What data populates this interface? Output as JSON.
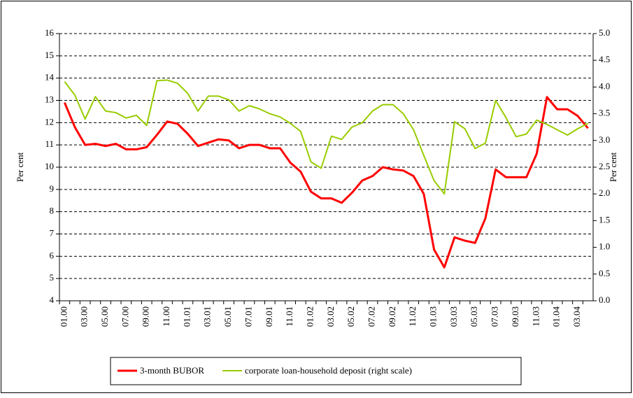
{
  "chart_data": {
    "type": "line",
    "categories": [
      "01.00",
      null,
      "03.00",
      null,
      "05.00",
      null,
      "07.00",
      null,
      "09.00",
      null,
      "11.00",
      null,
      "01.01",
      null,
      "03.01",
      null,
      "05.01",
      null,
      "07.01",
      null,
      "09.01",
      null,
      "11.01",
      null,
      "01.02",
      null,
      "03.02",
      null,
      "05.02",
      null,
      "07.02",
      null,
      "09.02",
      null,
      "11.02",
      null,
      "01.03",
      null,
      "03.03",
      null,
      "05.03",
      null,
      "07.03",
      null,
      "09.03",
      null,
      "11.03",
      null,
      "01.04",
      null,
      "03.04",
      null
    ],
    "ylabel": "Per cent",
    "y2label": "Per cent",
    "ylim": [
      4,
      16
    ],
    "yticks": [
      4,
      5,
      6,
      7,
      8,
      9,
      10,
      11,
      12,
      13,
      14,
      15,
      16
    ],
    "y2lim": [
      0,
      5
    ],
    "y2ticks": [
      {
        "value": 0,
        "label": "0.0"
      },
      0.5,
      {
        "value": 1,
        "label": "1.0"
      },
      1.5,
      {
        "value": 2,
        "label": "2.0"
      },
      2.5,
      {
        "value": 3,
        "label": "3.0"
      },
      3.5,
      {
        "value": 4,
        "label": "4.0"
      },
      4.5,
      {
        "value": 5,
        "label": "5.0"
      }
    ],
    "grid": true,
    "series": [
      {
        "name": "3-month BUBOR",
        "color": "#ff0000",
        "width": 3,
        "values": [
          12.9,
          11.8,
          11.0,
          11.05,
          10.95,
          11.05,
          10.8,
          10.8,
          10.9,
          11.45,
          12.05,
          11.95,
          11.5,
          10.95,
          11.1,
          11.25,
          11.2,
          10.85,
          11.0,
          11.0,
          10.85,
          10.85,
          10.2,
          9.8,
          8.9,
          8.6,
          8.6,
          8.4,
          8.85,
          9.4,
          9.6,
          10.0,
          9.9,
          9.85,
          9.6,
          8.8,
          6.3,
          5.5,
          6.85,
          6.7,
          6.6,
          7.7,
          9.9,
          9.55,
          9.55,
          9.55,
          10.6,
          13.15,
          12.6,
          12.6,
          12.3,
          11.75
        ]
      },
      {
        "name": "corporate loan-household deposit (right scale)",
        "color": "#99cc00",
        "width": 2,
        "axis": "y2",
        "values": [
          4.1,
          3.85,
          3.4,
          3.82,
          3.55,
          3.52,
          3.42,
          3.47,
          3.28,
          4.12,
          4.13,
          4.07,
          3.88,
          3.55,
          3.83,
          3.83,
          3.76,
          3.55,
          3.65,
          3.59,
          3.5,
          3.44,
          3.32,
          3.17,
          2.6,
          2.48,
          3.08,
          3.02,
          3.25,
          3.33,
          3.55,
          3.67,
          3.67,
          3.5,
          3.2,
          2.72,
          2.25,
          2.0,
          3.35,
          3.22,
          2.85,
          2.95,
          3.75,
          3.43,
          3.07,
          3.12,
          3.38,
          3.3,
          3.2,
          3.1,
          3.22,
          3.32
        ]
      }
    ]
  }
}
